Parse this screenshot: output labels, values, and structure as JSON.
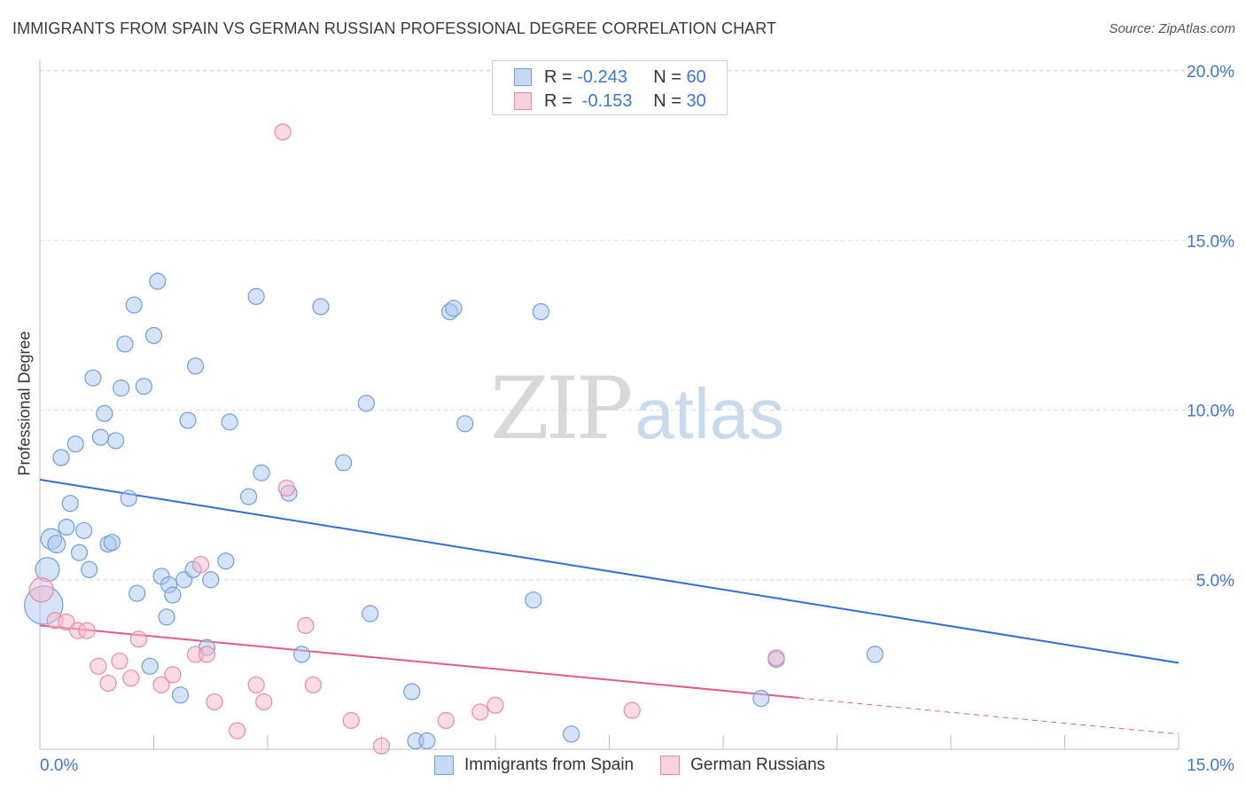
{
  "header": {
    "title": "IMMIGRANTS FROM SPAIN VS GERMAN RUSSIAN PROFESSIONAL DEGREE CORRELATION CHART",
    "source": "Source: ZipAtlas.com"
  },
  "watermark": {
    "zip": "ZIP",
    "atlas": "atlas"
  },
  "legend_top": [
    {
      "r_label": "R = ",
      "r_value": "-0.243",
      "n_label": "N = ",
      "n_value": "60"
    },
    {
      "r_label": "R = ",
      "r_value": " -0.153",
      "n_label": "N = ",
      "n_value": "30"
    }
  ],
  "legend_bottom": [
    {
      "label": "Immigrants from Spain"
    },
    {
      "label": "German Russians"
    }
  ],
  "colors": {
    "blue_fill": "#a9c8ef",
    "blue_stroke": "#6f9fdc",
    "blue_line": "#2f6fd0",
    "pink_fill": "#f7b9cb",
    "pink_stroke": "#e98aa7",
    "pink_line": "#e05c8a",
    "axis_text": "#3b78d4",
    "grid": "#dcdcdc"
  },
  "chart_data": {
    "type": "scatter",
    "title": "IMMIGRANTS FROM SPAIN VS GERMAN RUSSIAN PROFESSIONAL DEGREE CORRELATION CHART",
    "xlabel": "",
    "ylabel": "Professional Degree",
    "xlim": [
      0,
      15
    ],
    "ylim": [
      0,
      20
    ],
    "x_tick_labels": [
      "0.0%",
      "15.0%"
    ],
    "y_ticks": [
      5,
      10,
      15,
      20
    ],
    "y_tick_labels": [
      "5.0%",
      "10.0%",
      "15.0%",
      "20.0%"
    ],
    "series": [
      {
        "name": "Immigrants from Spain",
        "r": -0.243,
        "n": 60,
        "trend": {
          "x0": 0,
          "y0": 7.95,
          "x1": 15,
          "y1": 2.55,
          "dash_from": null
        },
        "points": [
          [
            0.05,
            4.25,
            2.4
          ],
          [
            0.1,
            5.3,
            1.5
          ],
          [
            0.15,
            6.2,
            1.3
          ],
          [
            0.22,
            6.05,
            1.1
          ],
          [
            0.28,
            8.6,
            1.0
          ],
          [
            0.35,
            6.55,
            1.0
          ],
          [
            0.4,
            7.25,
            1.0
          ],
          [
            0.47,
            9.0,
            1.0
          ],
          [
            0.52,
            5.8,
            1.0
          ],
          [
            0.58,
            6.45,
            1.0
          ],
          [
            0.65,
            5.3,
            1.0
          ],
          [
            0.7,
            10.95,
            1.0
          ],
          [
            0.8,
            9.2,
            1.0
          ],
          [
            0.85,
            9.9,
            1.0
          ],
          [
            0.9,
            6.05,
            1.0
          ],
          [
            0.95,
            6.1,
            1.0
          ],
          [
            1.0,
            9.1,
            1.0
          ],
          [
            1.07,
            10.65,
            1.0
          ],
          [
            1.12,
            11.95,
            1.0
          ],
          [
            1.17,
            7.4,
            1.0
          ],
          [
            1.24,
            13.1,
            1.0
          ],
          [
            1.28,
            4.6,
            1.0
          ],
          [
            1.37,
            10.7,
            1.0
          ],
          [
            1.45,
            2.45,
            1.0
          ],
          [
            1.5,
            12.2,
            1.0
          ],
          [
            1.55,
            13.8,
            1.0
          ],
          [
            1.6,
            5.1,
            1.0
          ],
          [
            1.67,
            3.9,
            1.0
          ],
          [
            1.7,
            4.85,
            1.0
          ],
          [
            1.75,
            4.55,
            1.0
          ],
          [
            1.85,
            1.6,
            1.0
          ],
          [
            1.9,
            5.0,
            1.0
          ],
          [
            1.95,
            9.7,
            1.0
          ],
          [
            2.02,
            5.3,
            1.0
          ],
          [
            2.05,
            11.3,
            1.0
          ],
          [
            2.2,
            3.0,
            1.0
          ],
          [
            2.25,
            5.0,
            1.0
          ],
          [
            2.45,
            5.55,
            1.0
          ],
          [
            2.5,
            9.65,
            1.0
          ],
          [
            2.75,
            7.45,
            1.0
          ],
          [
            2.85,
            13.35,
            1.0
          ],
          [
            2.92,
            8.15,
            1.0
          ],
          [
            3.28,
            7.55,
            1.0
          ],
          [
            3.45,
            2.8,
            1.0
          ],
          [
            3.7,
            13.05,
            1.0
          ],
          [
            4.0,
            8.45,
            1.0
          ],
          [
            4.3,
            10.2,
            1.0
          ],
          [
            4.35,
            4.0,
            1.0
          ],
          [
            4.9,
            1.7,
            1.0
          ],
          [
            4.95,
            0.25,
            1.0
          ],
          [
            5.1,
            0.25,
            1.0
          ],
          [
            5.4,
            12.9,
            1.0
          ],
          [
            5.45,
            13.0,
            1.0
          ],
          [
            5.6,
            9.6,
            1.0
          ],
          [
            6.6,
            12.9,
            1.0
          ],
          [
            6.5,
            4.4,
            1.0
          ],
          [
            7.0,
            0.45,
            1.0
          ],
          [
            9.5,
            1.5,
            1.0
          ],
          [
            9.7,
            2.65,
            1.0
          ],
          [
            11.0,
            2.8,
            1.0
          ]
        ]
      },
      {
        "name": "German Russians",
        "r": -0.153,
        "n": 30,
        "trend": {
          "x0": 0,
          "y0": 3.65,
          "x1": 15,
          "y1": 0.45,
          "dash_from": 10.0
        },
        "points": [
          [
            0.02,
            4.7,
            1.5
          ],
          [
            0.2,
            3.8,
            1.0
          ],
          [
            0.35,
            3.75,
            1.0
          ],
          [
            0.5,
            3.5,
            1.0
          ],
          [
            0.62,
            3.5,
            1.0
          ],
          [
            0.77,
            2.45,
            1.0
          ],
          [
            0.9,
            1.95,
            1.0
          ],
          [
            1.05,
            2.6,
            1.0
          ],
          [
            1.2,
            2.1,
            1.0
          ],
          [
            1.3,
            3.25,
            1.0
          ],
          [
            1.6,
            1.9,
            1.0
          ],
          [
            1.75,
            2.2,
            1.0
          ],
          [
            2.05,
            2.8,
            1.0
          ],
          [
            2.12,
            5.45,
            1.0
          ],
          [
            2.2,
            2.8,
            1.0
          ],
          [
            2.3,
            1.4,
            1.0
          ],
          [
            2.6,
            0.55,
            1.0
          ],
          [
            2.85,
            1.9,
            1.0
          ],
          [
            2.95,
            1.4,
            1.0
          ],
          [
            3.2,
            18.2,
            1.0
          ],
          [
            3.25,
            7.7,
            1.0
          ],
          [
            3.5,
            3.65,
            1.0
          ],
          [
            3.6,
            1.9,
            1.0
          ],
          [
            4.1,
            0.85,
            1.0
          ],
          [
            4.5,
            0.1,
            1.0
          ],
          [
            5.35,
            0.85,
            1.0
          ],
          [
            5.8,
            1.1,
            1.0
          ],
          [
            6.0,
            1.3,
            1.0
          ],
          [
            7.8,
            1.15,
            1.0
          ],
          [
            9.7,
            2.7,
            1.0
          ]
        ]
      }
    ]
  }
}
